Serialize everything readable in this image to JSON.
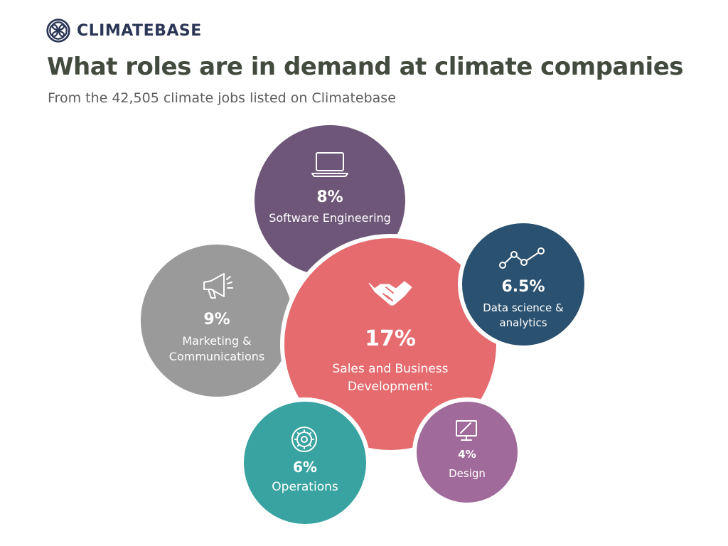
{
  "brand": {
    "name": "CLIMATEBASE"
  },
  "title": "What roles are in demand at climate companies",
  "subtitle": "From the 42,505 climate jobs listed on Climatebase",
  "chart_data": {
    "type": "bubble",
    "title": "What roles are in demand at climate companies",
    "subtitle": "From the 42,505 climate jobs listed on Climatebase",
    "unit": "%",
    "series": [
      {
        "label": [
          "Sales and Business",
          "Development:"
        ],
        "value": 17,
        "display": "17%",
        "color": "#e56b6f",
        "icon": "handshake-icon"
      },
      {
        "label": [
          "Software Engineering"
        ],
        "value": 8,
        "display": "8%",
        "color": "#6e5678",
        "icon": "laptop-icon"
      },
      {
        "label": [
          "Marketing &",
          "Communications"
        ],
        "value": 9,
        "display": "9%",
        "color": "#9a9a9a",
        "icon": "megaphone-icon"
      },
      {
        "label": [
          "Data science &",
          "analytics"
        ],
        "value": 6.5,
        "display": "6.5%",
        "color": "#2b5170",
        "icon": "line-graph-icon"
      },
      {
        "label": [
          "Operations"
        ],
        "value": 6,
        "display": "6%",
        "color": "#38a3a1",
        "icon": "gear-icon"
      },
      {
        "label": [
          "Design"
        ],
        "value": 4,
        "display": "4%",
        "color": "#a06a9a",
        "icon": "design-monitor-icon"
      }
    ]
  }
}
